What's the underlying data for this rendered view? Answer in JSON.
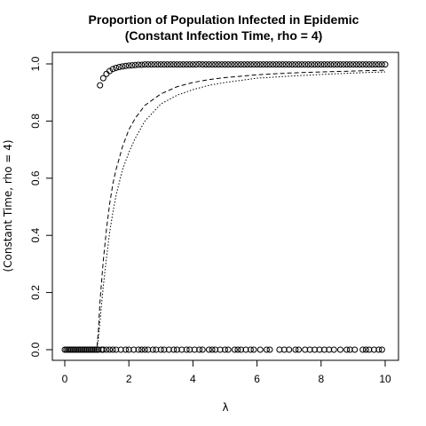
{
  "chart_data": {
    "type": "scatter",
    "title": [
      "Proportion of Population Infected in Epidemic",
      "(Constant Infection Time, rho = 4)"
    ],
    "xlabel": "λ",
    "ylabel": "(Constant Time, rho = 4)",
    "xlim": [
      0,
      10
    ],
    "ylim": [
      0,
      1
    ],
    "x_ticks": [
      0,
      2,
      4,
      6,
      8,
      10
    ],
    "y_ticks": [
      0.0,
      0.2,
      0.4,
      0.6,
      0.8,
      1.0
    ],
    "x_tick_labels": [
      "0",
      "2",
      "4",
      "6",
      "8",
      "10"
    ],
    "y_tick_labels": [
      "0.0",
      "0.2",
      "0.4",
      "0.6",
      "0.8",
      "1.0"
    ],
    "grid": false,
    "series": [
      {
        "style": "open-circles",
        "points": [
          [
            0.0,
            0
          ],
          [
            0.05,
            0
          ],
          [
            0.1,
            0
          ],
          [
            0.15,
            0
          ],
          [
            0.2,
            0
          ],
          [
            0.25,
            0
          ],
          [
            0.3,
            0
          ],
          [
            0.35,
            0
          ],
          [
            0.4,
            0
          ],
          [
            0.45,
            0
          ],
          [
            0.5,
            0
          ],
          [
            0.55,
            0
          ],
          [
            0.6,
            0
          ],
          [
            0.65,
            0
          ],
          [
            0.7,
            0
          ],
          [
            0.75,
            0
          ],
          [
            0.8,
            0
          ],
          [
            0.85,
            0
          ],
          [
            0.9,
            0
          ],
          [
            0.95,
            0
          ],
          [
            1.0,
            0
          ],
          [
            1.05,
            0
          ],
          [
            1.15,
            0
          ],
          [
            1.2,
            0
          ],
          [
            1.3,
            0
          ],
          [
            1.4,
            0
          ],
          [
            1.5,
            0
          ],
          [
            1.6,
            0
          ],
          [
            1.75,
            0
          ],
          [
            1.9,
            0
          ],
          [
            2.0,
            0
          ],
          [
            2.15,
            0
          ],
          [
            2.3,
            0
          ],
          [
            2.4,
            0
          ],
          [
            2.5,
            0
          ],
          [
            2.6,
            0
          ],
          [
            2.75,
            0
          ],
          [
            2.85,
            0
          ],
          [
            3.0,
            0
          ],
          [
            3.1,
            0
          ],
          [
            3.25,
            0
          ],
          [
            3.4,
            0
          ],
          [
            3.5,
            0
          ],
          [
            3.65,
            0
          ],
          [
            3.8,
            0
          ],
          [
            3.9,
            0
          ],
          [
            4.05,
            0
          ],
          [
            4.2,
            0
          ],
          [
            4.3,
            0
          ],
          [
            4.5,
            0
          ],
          [
            4.6,
            0
          ],
          [
            4.7,
            0
          ],
          [
            4.85,
            0
          ],
          [
            5.0,
            0
          ],
          [
            5.1,
            0
          ],
          [
            5.3,
            0
          ],
          [
            5.4,
            0
          ],
          [
            5.5,
            0
          ],
          [
            5.65,
            0
          ],
          [
            5.8,
            0
          ],
          [
            5.9,
            0
          ],
          [
            6.1,
            0
          ],
          [
            6.3,
            0
          ],
          [
            6.4,
            0
          ],
          [
            6.7,
            0
          ],
          [
            6.85,
            0
          ],
          [
            7.0,
            0
          ],
          [
            7.2,
            0
          ],
          [
            7.3,
            0
          ],
          [
            7.5,
            0
          ],
          [
            7.65,
            0
          ],
          [
            7.8,
            0
          ],
          [
            7.95,
            0
          ],
          [
            8.1,
            0
          ],
          [
            8.25,
            0
          ],
          [
            8.4,
            0
          ],
          [
            8.6,
            0
          ],
          [
            8.8,
            0
          ],
          [
            8.9,
            0
          ],
          [
            9.05,
            0
          ],
          [
            9.3,
            0
          ],
          [
            9.4,
            0
          ],
          [
            9.5,
            0
          ],
          [
            9.65,
            0
          ],
          [
            9.8,
            0
          ],
          [
            9.9,
            0
          ],
          [
            1.1,
            0.925
          ],
          [
            1.2,
            0.95
          ],
          [
            1.3,
            0.965
          ],
          [
            1.4,
            0.975
          ],
          [
            1.5,
            0.982
          ],
          [
            1.6,
            0.986
          ],
          [
            1.7,
            0.989
          ],
          [
            1.8,
            0.991
          ],
          [
            1.9,
            0.993
          ],
          [
            2.0,
            0.994
          ],
          [
            2.1,
            0.995
          ],
          [
            2.2,
            0.996
          ],
          [
            2.3,
            0.997
          ],
          [
            2.4,
            0.997
          ],
          [
            2.5,
            0.998
          ],
          [
            2.6,
            0.998
          ],
          [
            2.7,
            0.998
          ],
          [
            2.8,
            0.998
          ],
          [
            2.9,
            0.998
          ],
          [
            3.0,
            0.998
          ],
          [
            3.1,
            0.998
          ],
          [
            3.2,
            0.998
          ],
          [
            3.3,
            0.998
          ],
          [
            3.4,
            0.998
          ],
          [
            3.5,
            0.998
          ],
          [
            3.6,
            0.998
          ],
          [
            3.7,
            0.998
          ],
          [
            3.8,
            0.998
          ],
          [
            3.9,
            0.998
          ],
          [
            4.0,
            0.998
          ],
          [
            4.1,
            0.998
          ],
          [
            4.2,
            0.999
          ],
          [
            4.3,
            0.998
          ],
          [
            4.4,
            0.998
          ],
          [
            4.5,
            0.998
          ],
          [
            4.6,
            0.998
          ],
          [
            4.7,
            0.998
          ],
          [
            4.8,
            0.998
          ],
          [
            4.9,
            0.998
          ],
          [
            5.0,
            0.998
          ],
          [
            5.1,
            0.998
          ],
          [
            5.2,
            0.998
          ],
          [
            5.3,
            0.998
          ],
          [
            5.4,
            0.998
          ],
          [
            5.5,
            0.998
          ],
          [
            5.6,
            0.998
          ],
          [
            5.7,
            0.998
          ],
          [
            5.8,
            0.998
          ],
          [
            5.9,
            0.998
          ],
          [
            6.0,
            0.998
          ],
          [
            6.1,
            0.998
          ],
          [
            6.2,
            0.998
          ],
          [
            6.3,
            0.998
          ],
          [
            6.4,
            0.998
          ],
          [
            6.5,
            0.998
          ],
          [
            6.6,
            0.998
          ],
          [
            6.7,
            0.998
          ],
          [
            6.8,
            0.998
          ],
          [
            6.9,
            0.998
          ],
          [
            7.0,
            0.998
          ],
          [
            7.1,
            0.998
          ],
          [
            7.2,
            0.998
          ],
          [
            7.3,
            0.998
          ],
          [
            7.4,
            0.998
          ],
          [
            7.5,
            0.998
          ],
          [
            7.6,
            0.998
          ],
          [
            7.7,
            0.998
          ],
          [
            7.8,
            0.998
          ],
          [
            7.9,
            0.998
          ],
          [
            8.0,
            0.998
          ],
          [
            8.1,
            0.998
          ],
          [
            8.2,
            0.998
          ],
          [
            8.3,
            0.998
          ],
          [
            8.4,
            0.998
          ],
          [
            8.5,
            0.998
          ],
          [
            8.6,
            0.998
          ],
          [
            8.7,
            0.998
          ],
          [
            8.8,
            0.998
          ],
          [
            8.9,
            0.998
          ],
          [
            9.0,
            0.998
          ],
          [
            9.1,
            0.998
          ],
          [
            9.2,
            0.998
          ],
          [
            9.3,
            0.998
          ],
          [
            9.4,
            0.998
          ],
          [
            9.5,
            0.998
          ],
          [
            9.6,
            0.998
          ],
          [
            9.7,
            0.998
          ],
          [
            9.8,
            0.998
          ],
          [
            9.9,
            0.998
          ],
          [
            10.0,
            0.998
          ]
        ]
      },
      {
        "style": "dashed-line",
        "points": [
          [
            0,
            0
          ],
          [
            1.0,
            0
          ],
          [
            1.05,
            0.07
          ],
          [
            1.1,
            0.17
          ],
          [
            1.2,
            0.31
          ],
          [
            1.3,
            0.42
          ],
          [
            1.4,
            0.51
          ],
          [
            1.5,
            0.58
          ],
          [
            1.6,
            0.63
          ],
          [
            1.8,
            0.71
          ],
          [
            2.0,
            0.77
          ],
          [
            2.2,
            0.81
          ],
          [
            2.5,
            0.855
          ],
          [
            3.0,
            0.895
          ],
          [
            3.5,
            0.92
          ],
          [
            4.0,
            0.935
          ],
          [
            4.5,
            0.945
          ],
          [
            5.0,
            0.952
          ],
          [
            6.0,
            0.962
          ],
          [
            7.0,
            0.968
          ],
          [
            8.0,
            0.972
          ],
          [
            9.0,
            0.975
          ],
          [
            10.0,
            0.978
          ]
        ]
      },
      {
        "style": "dotted-line",
        "points": [
          [
            0,
            0
          ],
          [
            1.0,
            0
          ],
          [
            1.05,
            0.04
          ],
          [
            1.1,
            0.1
          ],
          [
            1.2,
            0.22
          ],
          [
            1.3,
            0.32
          ],
          [
            1.4,
            0.41
          ],
          [
            1.5,
            0.48
          ],
          [
            1.6,
            0.54
          ],
          [
            1.8,
            0.63
          ],
          [
            2.0,
            0.69
          ],
          [
            2.2,
            0.74
          ],
          [
            2.5,
            0.8
          ],
          [
            3.0,
            0.86
          ],
          [
            3.5,
            0.89
          ],
          [
            4.0,
            0.91
          ],
          [
            4.5,
            0.925
          ],
          [
            5.0,
            0.935
          ],
          [
            6.0,
            0.95
          ],
          [
            7.0,
            0.957
          ],
          [
            8.0,
            0.963
          ],
          [
            9.0,
            0.968
          ],
          [
            10.0,
            0.972
          ]
        ]
      }
    ]
  }
}
